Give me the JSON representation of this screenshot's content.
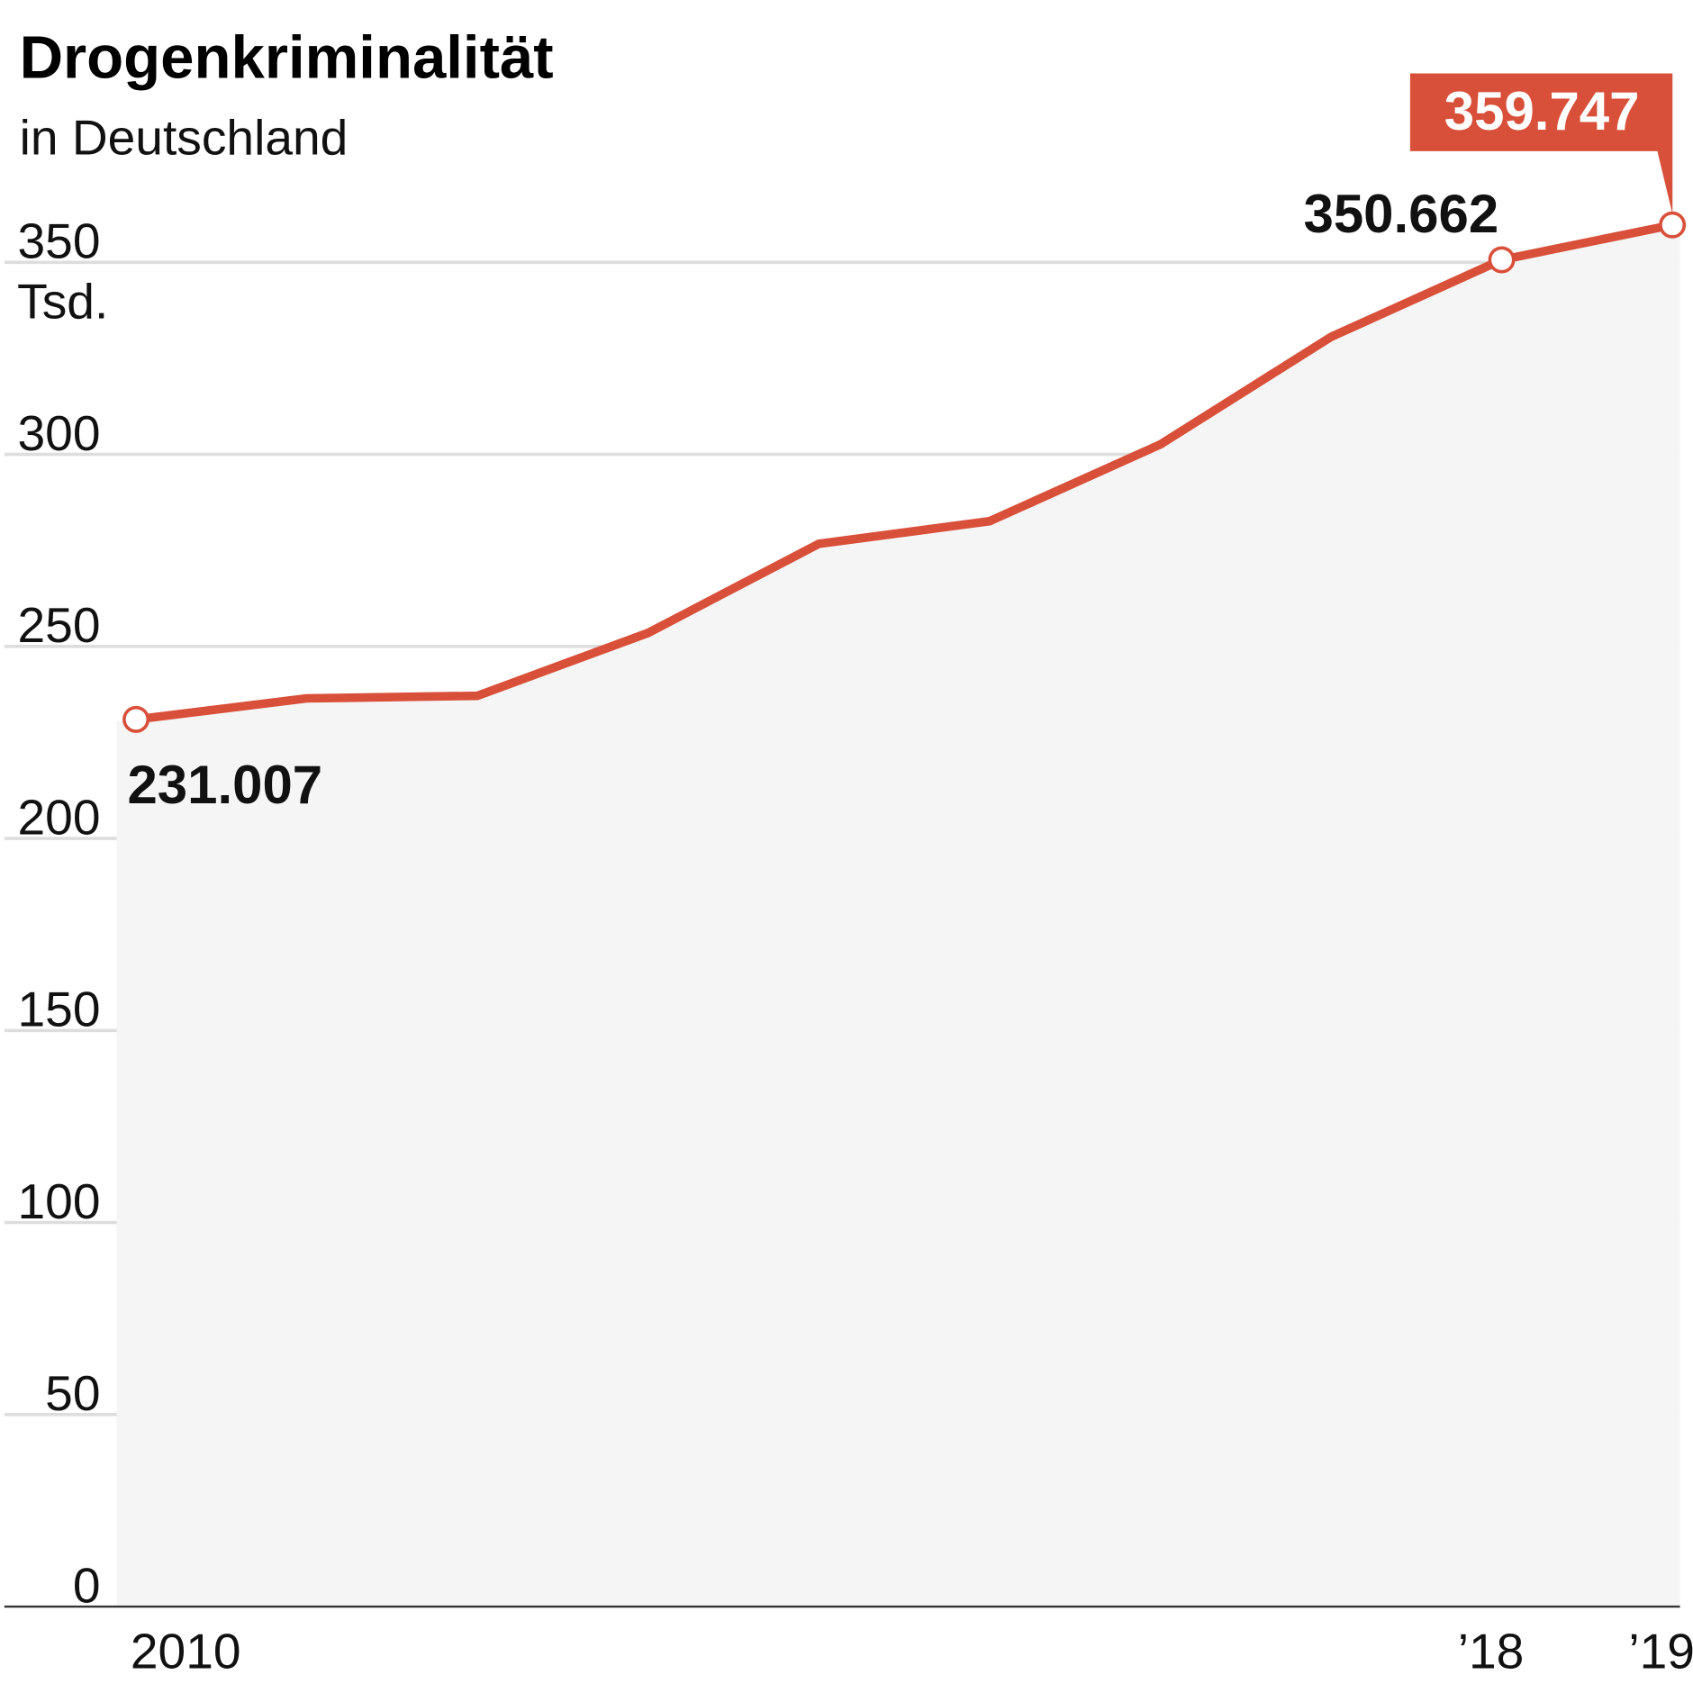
{
  "colors": {
    "line": "#d9503a",
    "area": "#f5f5f5",
    "grid": "#dddddd",
    "axis": "#333333"
  },
  "chart_data": {
    "type": "area",
    "title": "Drogenkriminalität",
    "subtitle": "in Deutschland",
    "unit_label": "Tsd.",
    "x": [
      2010,
      2011,
      2012,
      2013,
      2014,
      2015,
      2016,
      2017,
      2018,
      2019
    ],
    "values": [
      231.007,
      236.478,
      237.15,
      253.525,
      276.734,
      282.604,
      302.594,
      330.58,
      350.662,
      359.747
    ],
    "ylim": [
      0,
      350
    ],
    "yticks": [
      "0",
      "50",
      "100",
      "150",
      "200",
      "250",
      "300",
      "350"
    ],
    "xtick_labels": [
      {
        "x": 2010,
        "label": "2010"
      },
      {
        "x": 2018,
        "label": "’18"
      },
      {
        "x": 2019,
        "label": "’19"
      }
    ],
    "annotations": [
      {
        "x": 2010,
        "label": "231.007"
      },
      {
        "x": 2018,
        "label": "350.662"
      },
      {
        "x": 2019,
        "label": "359.747",
        "highlight": true
      }
    ]
  }
}
